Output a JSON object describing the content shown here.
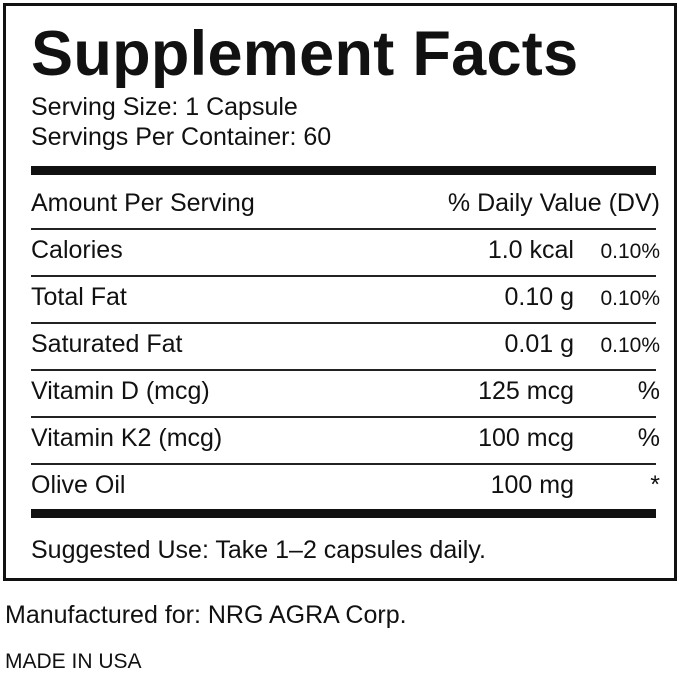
{
  "title": "Supplement Facts",
  "serving_size": "Serving Size: 1 Capsule",
  "servings_per_container": "Servings Per Container: 60",
  "header": {
    "amount": "Amount Per Serving",
    "dv": "% Daily Value (DV)"
  },
  "rows": [
    {
      "name": "Calories",
      "amount": "1.0 kcal",
      "dv": "0.10%"
    },
    {
      "name": "Total Fat",
      "amount": "0.10 g",
      "dv": "0.10%"
    },
    {
      "name": "Saturated Fat",
      "amount": "0.01 g",
      "dv": "0.10%"
    },
    {
      "name": "Vitamin D (mcg)",
      "amount": "125 mcg",
      "dv": "%"
    },
    {
      "name": "Vitamin K2 (mcg)",
      "amount": "100 mcg",
      "dv": "%"
    },
    {
      "name": "Olive Oil",
      "amount": "100 mg",
      "dv": "*"
    }
  ],
  "suggested_use": "Suggested Use: Take 1–2 capsules daily.",
  "manufactured_for": "Manufactured for: NRG AGRA Corp.",
  "origin": "MADE IN USA"
}
